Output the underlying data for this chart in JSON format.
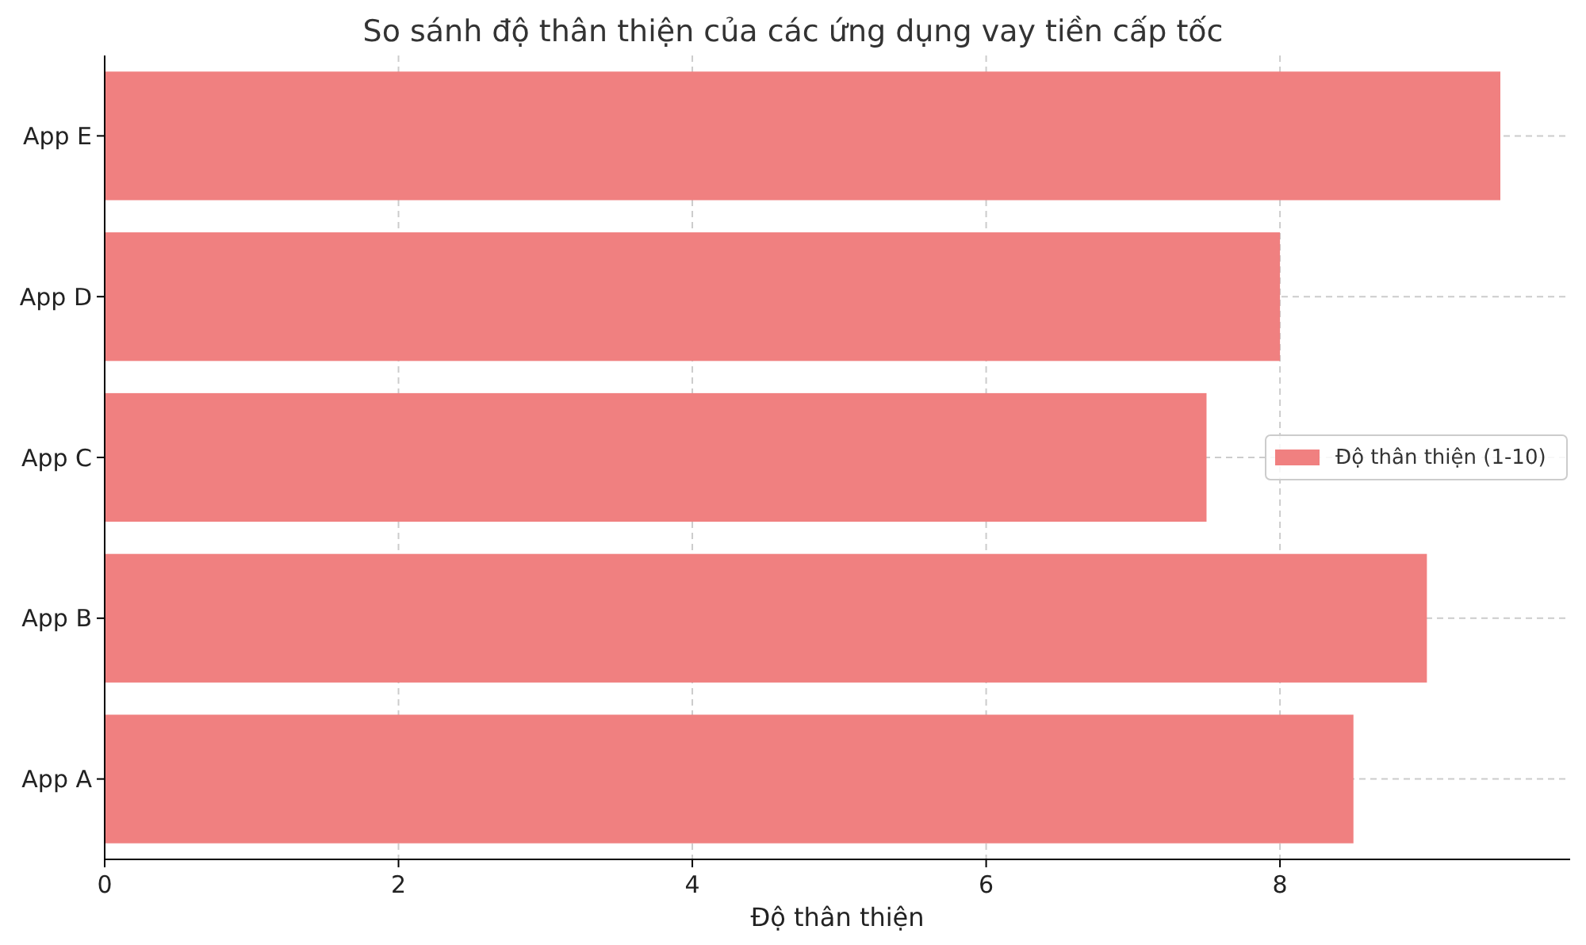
{
  "chart_data": {
    "type": "bar",
    "orientation": "horizontal",
    "title": "So sánh độ thân thiện của các ứng dụng vay tiền cấp tốc",
    "xlabel": "Độ thân thiện",
    "categories": [
      "App E",
      "App D",
      "App C",
      "App B",
      "App A"
    ],
    "series": [
      {
        "name": "Độ thân thiện (1-10)",
        "color": "#f08080",
        "values": [
          9.5,
          8,
          7.5,
          9,
          8.5
        ]
      }
    ],
    "xlim": [
      0,
      9.975
    ],
    "xticks": [
      0,
      2,
      4,
      6,
      8
    ],
    "grid": true,
    "legend": "right"
  }
}
